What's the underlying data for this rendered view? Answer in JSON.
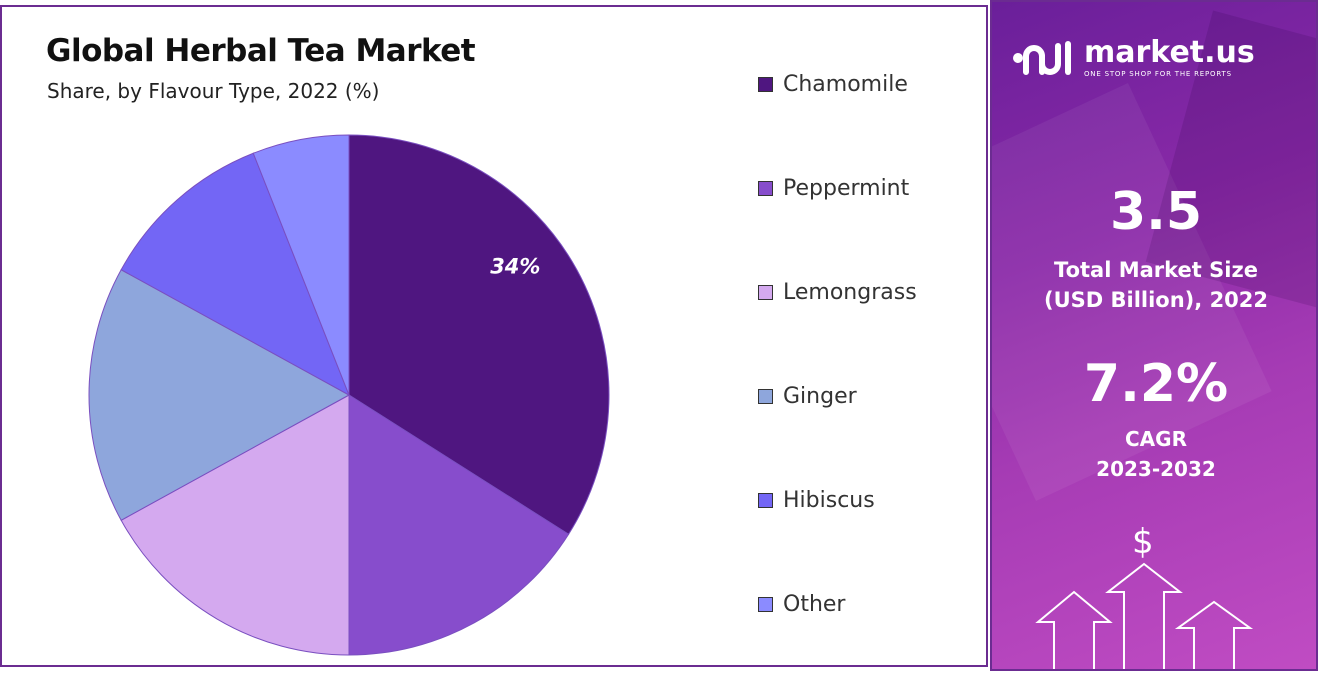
{
  "header": {
    "title": "Global Herbal Tea Market",
    "subtitle": "Share, by Flavour Type, 2022 (%)"
  },
  "chart_data": {
    "type": "pie",
    "title": "Global Herbal Tea Market",
    "subtitle": "Share, by Flavour Type, 2022 (%)",
    "categories": [
      "Chamomile",
      "Peppermint",
      "Lemongrass",
      "Ginger",
      "Hibiscus",
      "Other"
    ],
    "values": [
      34,
      16,
      17,
      16,
      11,
      6
    ],
    "colors": [
      "#4f1680",
      "#874dcc",
      "#d4a9ef",
      "#8ea6dc",
      "#7366f5",
      "#8b8bff"
    ],
    "data_labels": [
      "34%",
      "",
      "",
      "",
      "",
      ""
    ],
    "legend_position": "right"
  },
  "brand": {
    "name": "market.us",
    "tagline": "ONE STOP SHOP FOR THE REPORTS"
  },
  "metrics": {
    "market_size_value": "3.5",
    "market_size_label_1": "Total Market Size",
    "market_size_label_2": "(USD Billion), 2022",
    "cagr_value": "7.2%",
    "cagr_label_1": "CAGR",
    "cagr_label_2": "2023-2032",
    "currency_symbol": "$"
  }
}
